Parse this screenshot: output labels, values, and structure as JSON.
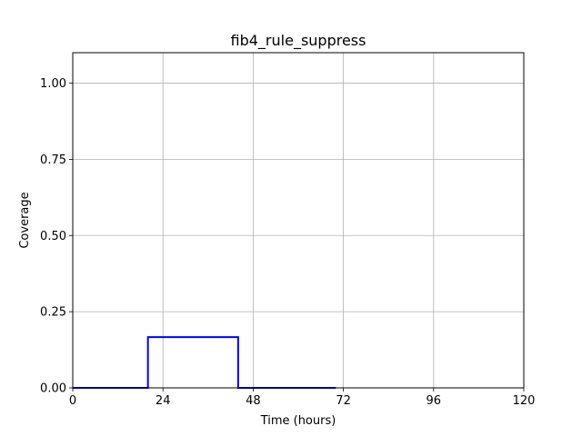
{
  "chart_data": {
    "type": "line",
    "title": "fib4_rule_suppress",
    "xlabel": "Time (hours)",
    "ylabel": "Coverage",
    "xlim": [
      0,
      120
    ],
    "ylim": [
      0,
      1.1
    ],
    "xticks": [
      0,
      24,
      48,
      72,
      96,
      120
    ],
    "xtick_labels": [
      "0",
      "24",
      "48",
      "72",
      "96",
      "120"
    ],
    "yticks": [
      0,
      0.25,
      0.5,
      0.75,
      1.0
    ],
    "ytick_labels": [
      "0.00",
      "0.25",
      "0.50",
      "0.75",
      "1.00"
    ],
    "grid": true,
    "series": [
      {
        "color": "#0000ff",
        "x": [
          0,
          20,
          20,
          44,
          44,
          70
        ],
        "y": [
          0,
          0,
          0.1667,
          0.1667,
          0,
          0
        ]
      }
    ]
  }
}
